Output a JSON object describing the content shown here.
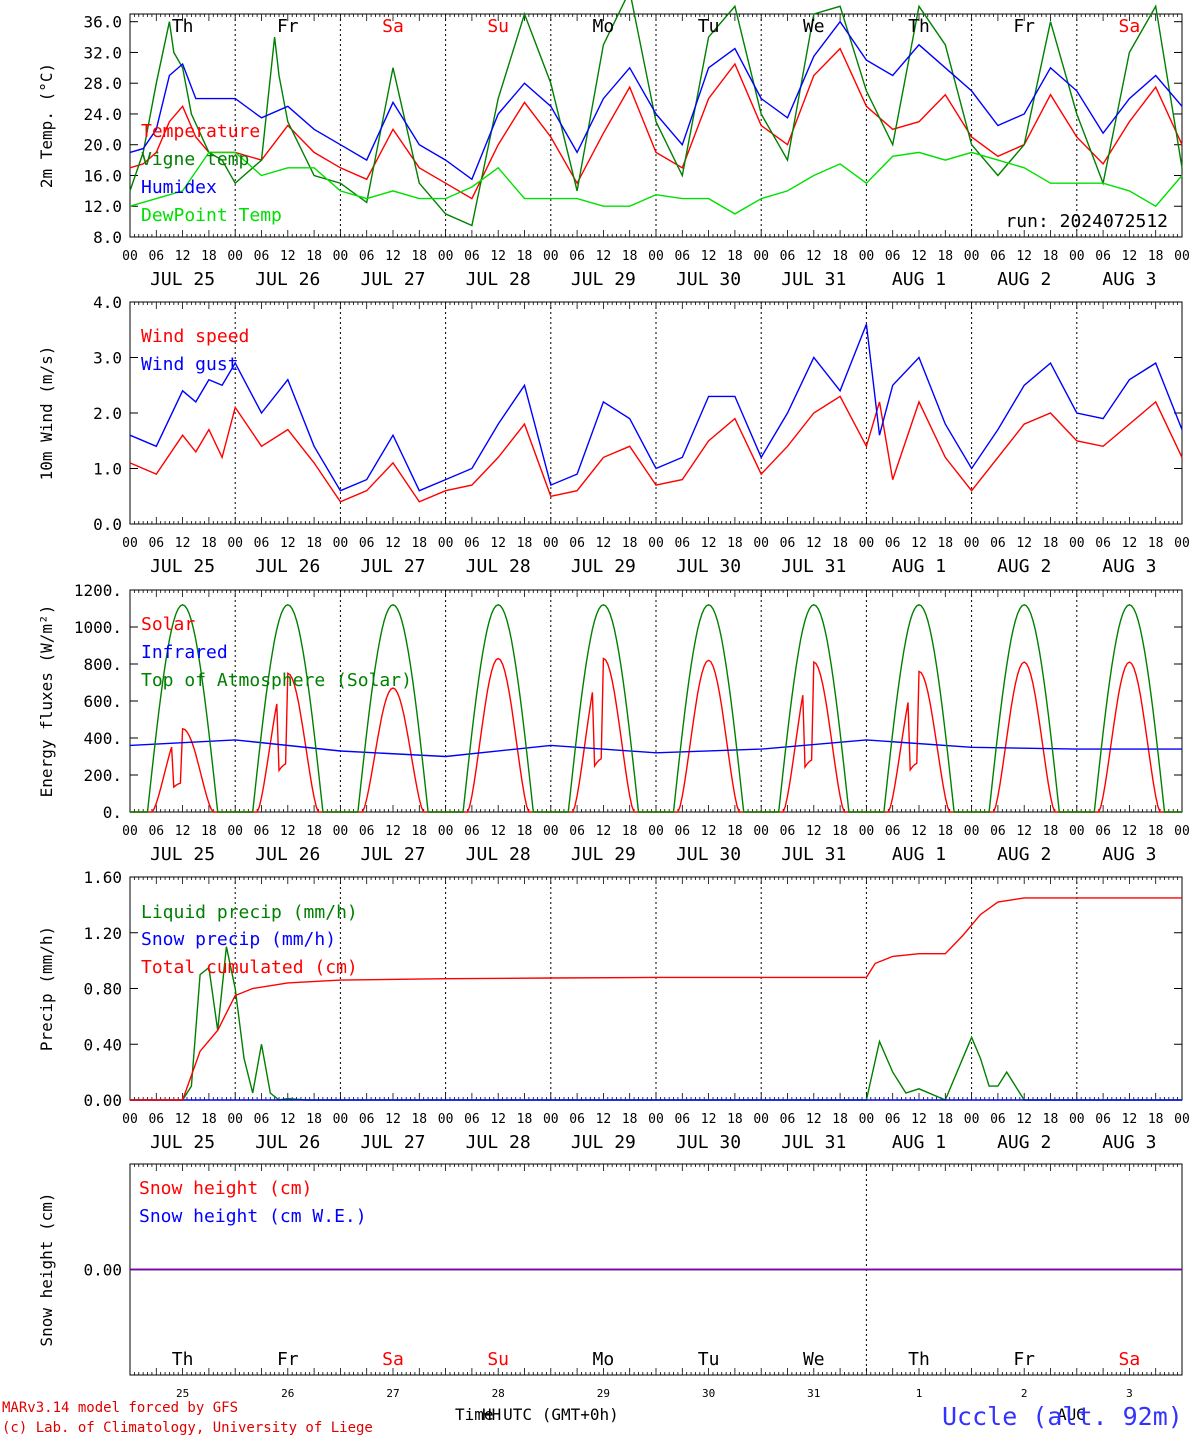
{
  "run_label": "run: 2024072512",
  "station": "Uccle (alt. 92m)",
  "credit": [
    "MARv3.14 model forced by GFS",
    "(c) Lab. of Climatology, University of Liege"
  ],
  "xlabel": "Time UTC (GMT+0h)",
  "stray_label": "HH",
  "aug_label": "AUG",
  "day_letters": [
    "Th",
    "Fr",
    "Sa",
    "Su",
    "Mo",
    "Tu",
    "We",
    "Th",
    "Fr",
    "Sa"
  ],
  "weekend": [
    false,
    false,
    true,
    true,
    false,
    false,
    false,
    false,
    false,
    true
  ],
  "date_labels": [
    "JUL 25",
    "JUL 26",
    "JUL 27",
    "JUL 28",
    "JUL 29",
    "JUL 30",
    "JUL 31",
    "AUG  1",
    "AUG  2",
    "AUG  3"
  ],
  "day_numbers": [
    "25",
    "26",
    "27",
    "28",
    "29",
    "30",
    "31",
    "1",
    "2",
    "3"
  ],
  "hour_ticks": [
    "00",
    "06",
    "12",
    "18"
  ],
  "colors": {
    "red": "#ff0000",
    "green": "#008000",
    "blue": "#0000ff",
    "lime": "#00e000",
    "weekend": "#ff0000",
    "station": "#3333ff",
    "credit": "#e00000"
  },
  "chart_data": [
    {
      "type": "line",
      "ylabel": "2m Temp. (°C)",
      "ylim": [
        8,
        37
      ],
      "yticks": [
        "8.0",
        "12.0",
        "16.0",
        "20.0",
        "24.0",
        "28.0",
        "32.0",
        "36.0"
      ],
      "series": [
        {
          "name": "Temperature",
          "color": "red",
          "x": [
            0,
            3,
            6,
            9,
            12,
            15,
            18,
            21,
            24,
            30,
            36,
            42,
            48,
            54,
            60,
            66,
            72,
            78,
            84,
            90,
            96,
            102,
            108,
            114,
            120,
            126,
            132,
            138,
            144,
            150,
            156,
            162,
            168,
            174,
            180,
            186,
            192,
            198,
            204,
            210,
            216,
            222,
            228,
            234,
            240
          ],
          "values": [
            17,
            17.5,
            19,
            23,
            25,
            21,
            19,
            19,
            19,
            18,
            22.5,
            19,
            17,
            15.5,
            22,
            17,
            15,
            13,
            20,
            25.5,
            21,
            15,
            21.5,
            27.5,
            19,
            17,
            26,
            30.5,
            22.5,
            20,
            29,
            32.5,
            25,
            22,
            23,
            26.5,
            21,
            18.5,
            20,
            26.5,
            21,
            17.5,
            23,
            27.5,
            20
          ]
        },
        {
          "name": "Vigne temp",
          "color": "green",
          "x": [
            0,
            3,
            6,
            9,
            10,
            12,
            14,
            18,
            21,
            24,
            30,
            33,
            34,
            36,
            42,
            48,
            54,
            60,
            66,
            72,
            78,
            84,
            90,
            96,
            102,
            108,
            114,
            120,
            126,
            132,
            138,
            144,
            150,
            156,
            162,
            168,
            174,
            180,
            186,
            192,
            198,
            204,
            210,
            216,
            222,
            228,
            234,
            240
          ],
          "values": [
            14,
            19,
            28,
            36,
            32,
            30,
            24,
            19,
            18,
            15,
            18,
            34,
            29,
            23,
            16,
            15,
            12.5,
            30,
            15,
            11,
            9.5,
            26,
            37,
            28,
            14,
            33,
            40,
            23,
            16,
            34,
            38,
            24,
            18,
            37,
            38,
            27,
            20,
            38,
            33,
            20,
            16,
            20,
            36,
            24,
            15,
            32,
            38,
            17
          ]
        },
        {
          "name": "Humidex",
          "color": "blue",
          "x": [
            0,
            3,
            6,
            9,
            12,
            15,
            18,
            21,
            24,
            30,
            36,
            42,
            48,
            54,
            60,
            66,
            72,
            78,
            84,
            90,
            96,
            102,
            108,
            114,
            120,
            126,
            132,
            138,
            144,
            150,
            156,
            162,
            168,
            174,
            180,
            186,
            192,
            198,
            204,
            210,
            216,
            222,
            228,
            234,
            240
          ],
          "values": [
            19,
            19.5,
            22,
            29,
            30.5,
            26,
            26,
            26,
            26,
            23.5,
            25,
            22,
            20,
            18,
            25.5,
            20,
            18,
            15.5,
            24,
            28,
            25,
            19,
            26,
            30,
            24,
            20,
            30,
            32.5,
            26,
            23.5,
            31.5,
            36,
            31,
            29,
            33,
            30,
            27,
            22.5,
            24,
            30,
            27,
            21.5,
            26,
            29,
            25
          ]
        },
        {
          "name": "DewPoint Temp",
          "color": "lime",
          "x": [
            0,
            6,
            12,
            18,
            24,
            30,
            36,
            42,
            48,
            54,
            60,
            66,
            72,
            78,
            84,
            90,
            96,
            102,
            108,
            114,
            120,
            126,
            132,
            138,
            144,
            150,
            156,
            162,
            168,
            174,
            180,
            186,
            192,
            198,
            204,
            210,
            216,
            222,
            228,
            234,
            240
          ],
          "values": [
            12,
            13,
            14,
            19,
            19,
            16,
            17,
            17,
            14,
            13,
            14,
            13,
            13,
            14.5,
            17,
            13,
            13,
            13,
            12,
            12,
            13.5,
            13,
            13,
            11,
            13,
            14,
            16,
            17.5,
            15,
            18.5,
            19,
            18,
            19,
            18,
            17,
            15,
            15,
            15,
            14,
            12,
            16
          ]
        }
      ]
    },
    {
      "type": "line",
      "ylabel": "10m Wind (m/s)",
      "ylim": [
        0,
        4
      ],
      "yticks": [
        "0.0",
        "1.0",
        "2.0",
        "3.0",
        "4.0"
      ],
      "series": [
        {
          "name": "Wind speed",
          "color": "red",
          "x": [
            0,
            6,
            12,
            15,
            18,
            21,
            24,
            30,
            36,
            42,
            48,
            54,
            60,
            66,
            72,
            78,
            84,
            90,
            96,
            102,
            108,
            114,
            120,
            126,
            132,
            138,
            144,
            150,
            156,
            162,
            168,
            171,
            174,
            180,
            186,
            192,
            198,
            204,
            210,
            216,
            222,
            228,
            234,
            240
          ],
          "values": [
            1.1,
            0.9,
            1.6,
            1.3,
            1.7,
            1.2,
            2.1,
            1.4,
            1.7,
            1.1,
            0.4,
            0.6,
            1.1,
            0.4,
            0.6,
            0.7,
            1.2,
            1.8,
            0.5,
            0.6,
            1.2,
            1.4,
            0.7,
            0.8,
            1.5,
            1.9,
            0.9,
            1.4,
            2.0,
            2.3,
            1.4,
            2.2,
            0.8,
            2.2,
            1.2,
            0.6,
            1.2,
            1.8,
            2.0,
            1.5,
            1.4,
            1.8,
            2.2,
            1.2
          ]
        },
        {
          "name": "Wind gust",
          "color": "blue",
          "x": [
            0,
            6,
            12,
            15,
            18,
            21,
            24,
            30,
            36,
            42,
            48,
            54,
            60,
            66,
            72,
            78,
            84,
            90,
            96,
            102,
            108,
            114,
            120,
            126,
            132,
            138,
            144,
            150,
            156,
            162,
            168,
            171,
            174,
            180,
            186,
            192,
            198,
            204,
            210,
            216,
            222,
            228,
            234,
            240
          ],
          "values": [
            1.6,
            1.4,
            2.4,
            2.2,
            2.6,
            2.5,
            2.9,
            2.0,
            2.6,
            1.4,
            0.6,
            0.8,
            1.6,
            0.6,
            0.8,
            1.0,
            1.8,
            2.5,
            0.7,
            0.9,
            2.2,
            1.9,
            1.0,
            1.2,
            2.3,
            2.3,
            1.2,
            2.0,
            3.0,
            2.4,
            3.6,
            1.6,
            2.5,
            3.0,
            1.8,
            1.0,
            1.7,
            2.5,
            2.9,
            2.0,
            1.9,
            2.6,
            2.9,
            1.7
          ]
        }
      ]
    },
    {
      "type": "line",
      "ylabel": "Energy fluxes (W/m²)",
      "ylim": [
        0,
        1200
      ],
      "yticks": [
        "0.",
        "200.",
        "400.",
        "600.",
        "800.",
        "1000.",
        "1200."
      ],
      "series": [
        {
          "name": "Solar",
          "color": "red",
          "peaks": [
            450,
            750,
            670,
            830,
            830,
            820,
            810,
            760,
            810,
            810
          ],
          "gust_days": [
            0,
            1,
            4,
            6,
            7
          ]
        },
        {
          "name": "Infrared",
          "color": "blue",
          "x": [
            0,
            24,
            48,
            72,
            96,
            120,
            144,
            168,
            192,
            216,
            240
          ],
          "values": [
            360,
            390,
            330,
            300,
            360,
            320,
            340,
            390,
            350,
            340,
            340
          ]
        },
        {
          "name": "Top of Atmosphere (Solar)",
          "color": "green",
          "peak": 1120
        }
      ]
    },
    {
      "type": "line",
      "ylabel": "Precip (mm/h)",
      "ylim": [
        0,
        1.6
      ],
      "yticks": [
        "0.00",
        "0.40",
        "0.80",
        "1.20",
        "1.60"
      ],
      "series": [
        {
          "name": "Liquid precip (mm/h)",
          "color": "green",
          "x": [
            0,
            12,
            14,
            16,
            18,
            20,
            22,
            24,
            26,
            28,
            30,
            32,
            34,
            36,
            40,
            48,
            168,
            171,
            174,
            177,
            180,
            186,
            190,
            192,
            194,
            196,
            198,
            200,
            204,
            240
          ],
          "values": [
            0,
            0,
            0.1,
            0.9,
            0.95,
            0.5,
            1.1,
            0.8,
            0.3,
            0.05,
            0.4,
            0.05,
            0,
            0.01,
            0,
            0,
            0,
            0.42,
            0.2,
            0.05,
            0.08,
            0,
            0.3,
            0.45,
            0.3,
            0.1,
            0.1,
            0.2,
            0,
            0
          ]
        },
        {
          "name": "Snow precip (mm/h)",
          "color": "blue",
          "x": [
            0,
            240
          ],
          "values": [
            0,
            0
          ]
        },
        {
          "name": "Total cumulated (cm)",
          "color": "red",
          "x": [
            0,
            12,
            16,
            20,
            24,
            28,
            36,
            48,
            72,
            96,
            120,
            144,
            168,
            170,
            174,
            180,
            186,
            190,
            194,
            198,
            204,
            240
          ],
          "values": [
            0,
            0,
            0.35,
            0.5,
            0.75,
            0.8,
            0.84,
            0.86,
            0.87,
            0.875,
            0.88,
            0.88,
            0.88,
            0.98,
            1.03,
            1.05,
            1.05,
            1.18,
            1.33,
            1.42,
            1.45,
            1.45
          ]
        }
      ]
    },
    {
      "type": "line",
      "ylabel": "Snow height (cm)",
      "ylim": [
        -1,
        1
      ],
      "yticks": [
        "0.00"
      ],
      "series": [
        {
          "name": "Snow height (cm)",
          "color": "red",
          "x": [
            0,
            240
          ],
          "values": [
            0,
            0
          ]
        },
        {
          "name": "Snow height (cm W.E.)",
          "color": "blue",
          "x": [
            0,
            240
          ],
          "values": [
            0,
            0
          ]
        }
      ]
    }
  ]
}
